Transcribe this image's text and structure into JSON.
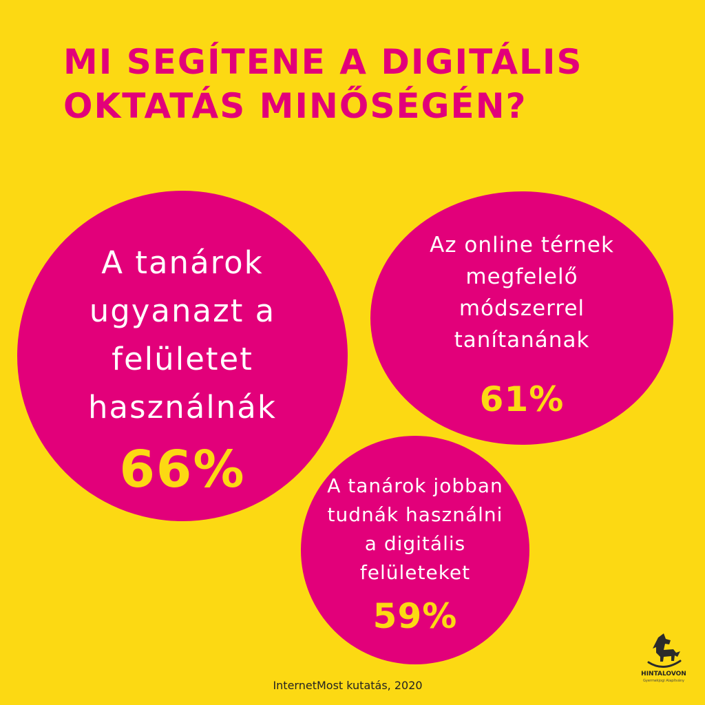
{
  "title": {
    "line1": "MI SEGÍTENE A DIGITÁLIS",
    "line2": "OKTATÁS MINŐSÉGÉN?"
  },
  "bubbles": [
    {
      "lines": [
        "A tanárok",
        "ugyanazt a",
        "felületet",
        "használnák"
      ],
      "percent": "66%"
    },
    {
      "lines": [
        "Az online térnek",
        "megfelelő",
        "módszerrel",
        "tanítanának"
      ],
      "percent": "61%"
    },
    {
      "lines": [
        "A tanárok jobban",
        "tudnák használni",
        "a digitális",
        "felületeket"
      ],
      "percent": "59%"
    }
  ],
  "source": "InternetMost kutatás, 2020",
  "logo": {
    "icon": "rocking-horse-icon",
    "name": "HINTALOVON",
    "tagline": "Gyermekjogi Alapítvány"
  },
  "colors": {
    "background": "#fcd913",
    "accent": "#e2007a",
    "statement_text": "#ffffff",
    "percent_text": "#fcd913"
  }
}
